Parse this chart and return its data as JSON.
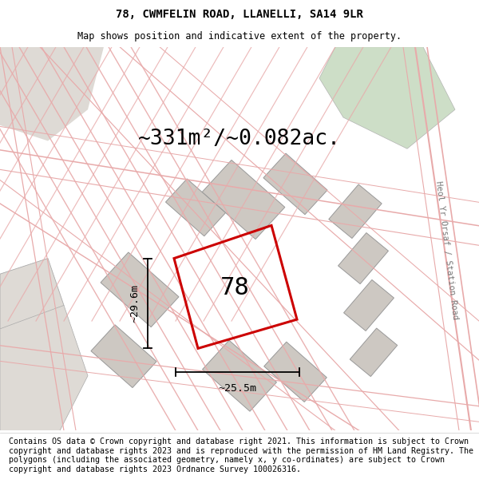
{
  "title": "78, CWMFELIN ROAD, LLANELLI, SA14 9LR",
  "subtitle": "Map shows position and indicative extent of the property.",
  "area_label": "~331m²/~0.082ac.",
  "number_label": "78",
  "width_label": "~25.5m",
  "height_label": "~29.6m",
  "footer": "Contains OS data © Crown copyright and database right 2021. This information is subject to Crown copyright and database rights 2023 and is reproduced with the permission of HM Land Registry. The polygons (including the associated geometry, namely x, y co-ordinates) are subject to Crown copyright and database rights 2023 Ordnance Survey 100026316.",
  "map_bg": "#ede8e3",
  "road_color": "#e8aaaa",
  "plot_outline_color": "#cc0000",
  "building_color": "#cdc8c2",
  "green_color": "#c5d9be",
  "title_fontsize": 10,
  "subtitle_fontsize": 8.5,
  "area_fontsize": 19,
  "number_fontsize": 22,
  "footer_fontsize": 7.2,
  "road_lw": 1.0
}
